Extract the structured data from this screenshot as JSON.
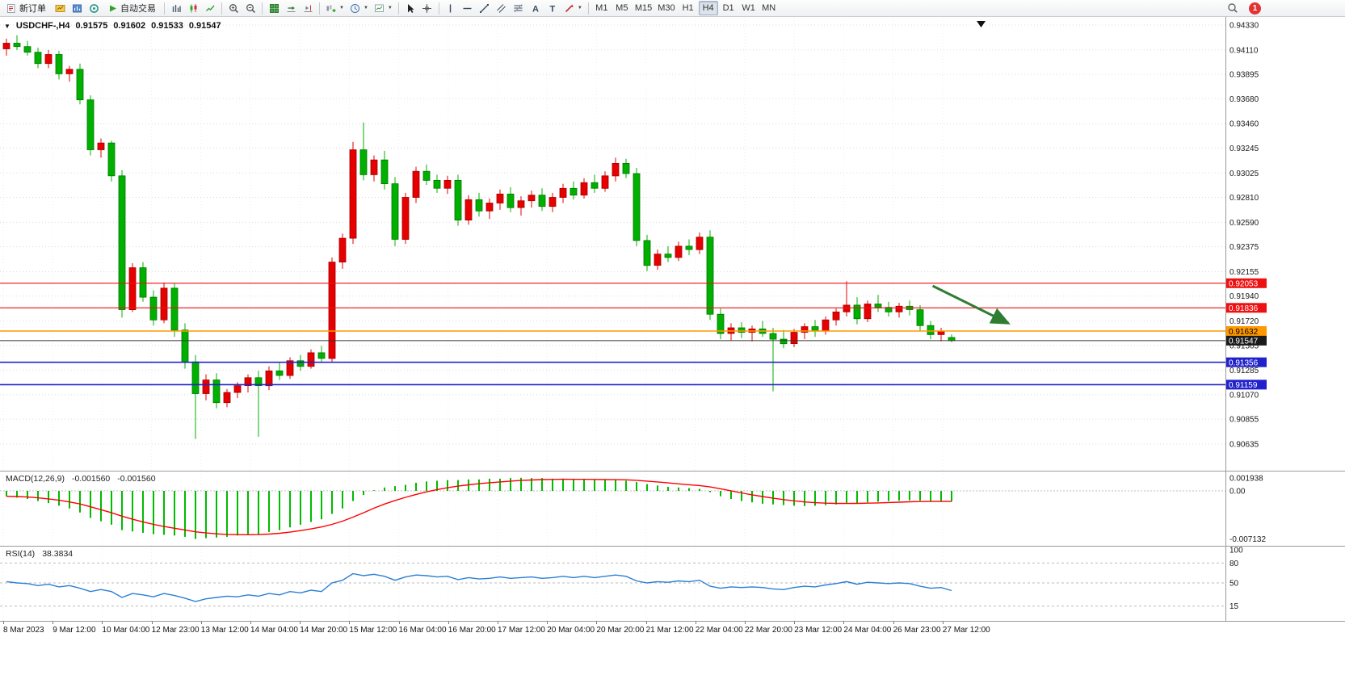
{
  "toolbar": {
    "new_order_label": "新订单",
    "autotrading_label": "自动交易",
    "timeframes": [
      "M1",
      "M5",
      "M15",
      "M30",
      "H1",
      "H4",
      "D1",
      "W1",
      "MN"
    ],
    "active_timeframe": "H4",
    "notification_badge": "1"
  },
  "chart": {
    "symbol_period": "USDCHF-,H4",
    "open": "0.91575",
    "high": "0.91602",
    "low": "0.91533",
    "close": "0.91547"
  },
  "icons": {
    "new_order": "document-sheet",
    "autotrading": "green-play-triangle",
    "zoom_in": "magnifier-plus",
    "zoom_out": "magnifier-minus",
    "tile_windows": "green-grid",
    "periods": "clock",
    "cursor": "pointer-arrow",
    "crosshair": "cross",
    "search": "magnifier",
    "notification": "red-circle-badge",
    "chart_menu": "black-down-triangle",
    "symbol_collapse": "black-down-triangle"
  },
  "chart_data": {
    "type": "candlestick",
    "symbol": "USDCHF-",
    "period": "H4",
    "up_color": "#e60000",
    "down_color": "#00b000",
    "price_axis": {
      "max": 0.9433,
      "min": 0.90635,
      "ticks": [
        "0.94330",
        "0.94110",
        "0.93895",
        "0.93680",
        "0.93460",
        "0.93245",
        "0.93025",
        "0.92810",
        "0.92590",
        "0.92375",
        "0.92155",
        "0.91940",
        "0.91720",
        "0.91505",
        "0.91285",
        "0.91070",
        "0.90855",
        "0.90635"
      ]
    },
    "time_axis": [
      "8 Mar 2023",
      "9 Mar 12:00",
      "10 Mar 04:00",
      "12 Mar 23:00",
      "13 Mar 12:00",
      "14 Mar 04:00",
      "14 Mar 20:00",
      "15 Mar 12:00",
      "16 Mar 04:00",
      "16 Mar 20:00",
      "17 Mar 12:00",
      "20 Mar 04:00",
      "20 Mar 20:00",
      "21 Mar 12:00",
      "22 Mar 04:00",
      "22 Mar 20:00",
      "23 Mar 12:00",
      "24 Mar 04:00",
      "26 Mar 23:00",
      "27 Mar 12:00"
    ],
    "candles": [
      [
        0.9412,
        0.9421,
        0.9406,
        0.9417
      ],
      [
        0.9417,
        0.9424,
        0.9411,
        0.9414
      ],
      [
        0.9414,
        0.9419,
        0.9406,
        0.9409
      ],
      [
        0.9409,
        0.9413,
        0.9395,
        0.9399
      ],
      [
        0.9399,
        0.9411,
        0.9395,
        0.9407
      ],
      [
        0.9407,
        0.941,
        0.9385,
        0.939
      ],
      [
        0.939,
        0.9397,
        0.9383,
        0.9394
      ],
      [
        0.9394,
        0.9399,
        0.9363,
        0.9367
      ],
      [
        0.9367,
        0.9371,
        0.9318,
        0.9323
      ],
      [
        0.9323,
        0.9333,
        0.9316,
        0.9329
      ],
      [
        0.9329,
        0.9331,
        0.9295,
        0.93
      ],
      [
        0.93,
        0.9305,
        0.9175,
        0.9182
      ],
      [
        0.9182,
        0.9223,
        0.918,
        0.9219
      ],
      [
        0.9219,
        0.9224,
        0.9189,
        0.9193
      ],
      [
        0.9193,
        0.9199,
        0.9168,
        0.9173
      ],
      [
        0.9173,
        0.9206,
        0.917,
        0.9201
      ],
      [
        0.9201,
        0.9205,
        0.9158,
        0.9164
      ],
      [
        0.9164,
        0.917,
        0.913,
        0.9136
      ],
      [
        0.9136,
        0.9142,
        0.9068,
        0.9108
      ],
      [
        0.9108,
        0.9125,
        0.9102,
        0.912
      ],
      [
        0.912,
        0.9126,
        0.9095,
        0.91
      ],
      [
        0.91,
        0.9112,
        0.9096,
        0.9109
      ],
      [
        0.9109,
        0.9118,
        0.9104,
        0.9115
      ],
      [
        0.9115,
        0.9125,
        0.9109,
        0.9122
      ],
      [
        0.9122,
        0.9128,
        0.907,
        0.9115
      ],
      [
        0.9115,
        0.9132,
        0.9111,
        0.9128
      ],
      [
        0.9128,
        0.9135,
        0.912,
        0.9124
      ],
      [
        0.9124,
        0.914,
        0.9121,
        0.9137
      ],
      [
        0.9137,
        0.9142,
        0.9128,
        0.9132
      ],
      [
        0.9132,
        0.9147,
        0.913,
        0.9144
      ],
      [
        0.9144,
        0.915,
        0.9135,
        0.9139
      ],
      [
        0.9139,
        0.9228,
        0.9136,
        0.9224
      ],
      [
        0.9224,
        0.9249,
        0.9218,
        0.9245
      ],
      [
        0.9245,
        0.933,
        0.924,
        0.9323
      ],
      [
        0.9323,
        0.9347,
        0.9296,
        0.9301
      ],
      [
        0.9301,
        0.9318,
        0.9295,
        0.9314
      ],
      [
        0.9314,
        0.9322,
        0.9288,
        0.9293
      ],
      [
        0.9293,
        0.9299,
        0.9238,
        0.9244
      ],
      [
        0.9244,
        0.9285,
        0.924,
        0.9281
      ],
      [
        0.9281,
        0.9308,
        0.9276,
        0.9304
      ],
      [
        0.9304,
        0.931,
        0.9292,
        0.9296
      ],
      [
        0.9296,
        0.9301,
        0.9285,
        0.9289
      ],
      [
        0.9289,
        0.93,
        0.9284,
        0.9296
      ],
      [
        0.9296,
        0.9301,
        0.9256,
        0.9261
      ],
      [
        0.9261,
        0.9283,
        0.9257,
        0.9279
      ],
      [
        0.9279,
        0.9285,
        0.9264,
        0.9269
      ],
      [
        0.9269,
        0.928,
        0.9262,
        0.9276
      ],
      [
        0.9276,
        0.9288,
        0.927,
        0.9284
      ],
      [
        0.9284,
        0.929,
        0.9268,
        0.9272
      ],
      [
        0.9272,
        0.9282,
        0.9265,
        0.9278
      ],
      [
        0.9278,
        0.9287,
        0.9272,
        0.9283
      ],
      [
        0.9283,
        0.9289,
        0.9269,
        0.9273
      ],
      [
        0.9273,
        0.9285,
        0.9268,
        0.9281
      ],
      [
        0.9281,
        0.9293,
        0.9276,
        0.9289
      ],
      [
        0.9289,
        0.9295,
        0.9279,
        0.9283
      ],
      [
        0.9283,
        0.9298,
        0.928,
        0.9294
      ],
      [
        0.9294,
        0.9301,
        0.9285,
        0.9289
      ],
      [
        0.9289,
        0.9304,
        0.9286,
        0.93
      ],
      [
        0.93,
        0.9316,
        0.9295,
        0.9311
      ],
      [
        0.9311,
        0.9315,
        0.9298,
        0.9302
      ],
      [
        0.9302,
        0.9307,
        0.9238,
        0.9243
      ],
      [
        0.9243,
        0.9248,
        0.9216,
        0.9221
      ],
      [
        0.9221,
        0.9235,
        0.9217,
        0.9231
      ],
      [
        0.9231,
        0.9238,
        0.9224,
        0.9228
      ],
      [
        0.9228,
        0.9242,
        0.9225,
        0.9238
      ],
      [
        0.9238,
        0.9244,
        0.923,
        0.9235
      ],
      [
        0.9235,
        0.925,
        0.9231,
        0.9246
      ],
      [
        0.9246,
        0.9252,
        0.9173,
        0.9178
      ],
      [
        0.9178,
        0.9183,
        0.9156,
        0.9161
      ],
      [
        0.9161,
        0.917,
        0.9155,
        0.9166
      ],
      [
        0.9166,
        0.9171,
        0.9157,
        0.9162
      ],
      [
        0.9162,
        0.9168,
        0.9154,
        0.9165
      ],
      [
        0.9165,
        0.9172,
        0.9158,
        0.9161
      ],
      [
        0.9161,
        0.9166,
        0.911,
        0.9156
      ],
      [
        0.9156,
        0.9164,
        0.9148,
        0.9152
      ],
      [
        0.9152,
        0.9165,
        0.9149,
        0.9162
      ],
      [
        0.9162,
        0.917,
        0.9156,
        0.9167
      ],
      [
        0.9167,
        0.9173,
        0.9158,
        0.9163
      ],
      [
        0.9163,
        0.9176,
        0.916,
        0.9173
      ],
      [
        0.9173,
        0.9183,
        0.9168,
        0.918
      ],
      [
        0.918,
        0.9207,
        0.9176,
        0.9186
      ],
      [
        0.9186,
        0.9193,
        0.9169,
        0.9174
      ],
      [
        0.9174,
        0.919,
        0.9171,
        0.9187
      ],
      [
        0.9187,
        0.9195,
        0.918,
        0.9184
      ],
      [
        0.9184,
        0.9189,
        0.9176,
        0.918
      ],
      [
        0.918,
        0.9188,
        0.9175,
        0.9185
      ],
      [
        0.9185,
        0.919,
        0.9177,
        0.9182
      ],
      [
        0.9182,
        0.9186,
        0.9163,
        0.9168
      ],
      [
        0.9168,
        0.9172,
        0.9156,
        0.916
      ],
      [
        0.916,
        0.9166,
        0.9154,
        0.9163
      ],
      [
        0.91575,
        0.91602,
        0.91533,
        0.91547
      ]
    ],
    "levels": [
      {
        "price": 0.92053,
        "label": "0.92053",
        "color": "#ee1111",
        "text_color": "#ffffff",
        "width": 1.2
      },
      {
        "price": 0.91836,
        "label": "0.91836",
        "color": "#ee1111",
        "text_color": "#ffffff",
        "width": 1.2
      },
      {
        "price": 0.91632,
        "label": "0.91632",
        "color": "#ff9900",
        "text_color": "#000000",
        "width": 1.6
      },
      {
        "price": 0.91356,
        "label": "0.91356",
        "color": "#2222cc",
        "text_color": "#ffffff",
        "width": 1.6
      },
      {
        "price": 0.91159,
        "label": "0.91159",
        "color": "#2222cc",
        "text_color": "#ffffff",
        "width": 1.6
      }
    ],
    "current_price": {
      "value": 0.91547,
      "label": "0.91547",
      "bg": "#1a1a1a",
      "text_color": "#ffffff",
      "line_color": "#333333"
    },
    "annotations": [
      {
        "type": "arrow",
        "from_bar": 88.2,
        "from_price": 0.9203,
        "to_bar": 95.4,
        "to_price": 0.917,
        "color": "#2e7d32",
        "width": 3
      }
    ],
    "macd": {
      "name": "MACD(12,26,9)",
      "value1": "-0.001560",
      "value2": "-0.001560",
      "histogram_color": "#00bb00",
      "signal_color": "#ff0000",
      "axis_ticks": [
        "0.001938",
        "0.00",
        "-0.007132"
      ],
      "histogram": [
        -0.0008,
        -0.001,
        -0.0012,
        -0.0015,
        -0.0018,
        -0.0022,
        -0.0026,
        -0.0032,
        -0.004,
        -0.0045,
        -0.005,
        -0.0058,
        -0.006,
        -0.0062,
        -0.0064,
        -0.0065,
        -0.0066,
        -0.0068,
        -0.0071,
        -0.007,
        -0.0069,
        -0.0068,
        -0.0066,
        -0.0065,
        -0.0064,
        -0.0061,
        -0.0058,
        -0.0054,
        -0.005,
        -0.0046,
        -0.0042,
        -0.0034,
        -0.0026,
        -0.0015,
        -0.0006,
        0.0001,
        0.0005,
        0.0007,
        0.0009,
        0.0012,
        0.0014,
        0.0015,
        0.0016,
        0.0016,
        0.0017,
        0.0017,
        0.0018,
        0.0018,
        0.0019,
        0.00194,
        0.0019,
        0.0019,
        0.0018,
        0.0018,
        0.0017,
        0.0017,
        0.0016,
        0.0016,
        0.0016,
        0.0015,
        0.0013,
        0.001,
        0.0008,
        0.0006,
        0.0005,
        0.0004,
        0.0003,
        -0.0002,
        -0.0008,
        -0.0012,
        -0.0015,
        -0.0017,
        -0.0019,
        -0.002,
        -0.0021,
        -0.0022,
        -0.00225,
        -0.0022,
        -0.0021,
        -0.002,
        -0.0019,
        -0.0018,
        -0.0017,
        -0.0016,
        -0.0015,
        -0.00145,
        -0.0014,
        -0.00145,
        -0.0015,
        -0.00155,
        -0.00156
      ],
      "signal": [
        -0.0008,
        -0.00084,
        -0.00091,
        -0.00103,
        -0.00118,
        -0.00139,
        -0.00163,
        -0.00194,
        -0.00235,
        -0.00278,
        -0.00323,
        -0.00374,
        -0.00419,
        -0.00459,
        -0.00496,
        -0.00526,
        -0.00553,
        -0.00578,
        -0.00605,
        -0.00622,
        -0.00635,
        -0.00644,
        -0.00647,
        -0.00648,
        -0.00646,
        -0.00639,
        -0.00627,
        -0.0061,
        -0.00588,
        -0.00562,
        -0.00534,
        -0.00495,
        -0.00448,
        -0.00388,
        -0.00323,
        -0.00256,
        -0.00195,
        -0.00142,
        -0.00095,
        -0.00052,
        -0.00014,
        0.00019,
        0.00047,
        0.0007,
        0.0009,
        0.00106,
        0.00121,
        0.00133,
        0.00144,
        0.00154,
        0.00161,
        0.00167,
        0.0017,
        0.00172,
        0.00171,
        0.00171,
        0.00169,
        0.00167,
        0.00166,
        0.00163,
        0.00156,
        0.00145,
        0.00132,
        0.00118,
        0.00104,
        0.00091,
        0.00079,
        0.00059,
        0.00031,
        1e-05,
        -0.0003,
        -0.00058,
        -0.00084,
        -0.00109,
        -0.00129,
        -0.00147,
        -0.00163,
        -0.00174,
        -0.00181,
        -0.00185,
        -0.00186,
        -0.00185,
        -0.00182,
        -0.00178,
        -0.00172,
        -0.00167,
        -0.00161,
        -0.00158,
        -0.00156,
        -0.00156,
        -0.00156
      ]
    },
    "rsi": {
      "name": "RSI(14)",
      "value_label": "38.3834",
      "line_color": "#2a7fd4",
      "levels": [
        80,
        50,
        15
      ],
      "axis_ticks": [
        "100",
        "80",
        "50",
        "15"
      ],
      "values": [
        52,
        50,
        49,
        46,
        48,
        44,
        46,
        42,
        37,
        40,
        37,
        28,
        34,
        32,
        29,
        34,
        31,
        27,
        22,
        26,
        28,
        30,
        29,
        32,
        30,
        34,
        32,
        37,
        35,
        39,
        37,
        50,
        54,
        64,
        61,
        63,
        60,
        54,
        59,
        62,
        61,
        59,
        60,
        55,
        58,
        56,
        57,
        59,
        57,
        58,
        59,
        57,
        58,
        60,
        58,
        60,
        58,
        60,
        62,
        60,
        53,
        50,
        52,
        51,
        53,
        52,
        54,
        45,
        42,
        44,
        43,
        44,
        43,
        41,
        40,
        43,
        45,
        44,
        47,
        49,
        52,
        48,
        51,
        50,
        49,
        50,
        49,
        45,
        42,
        43,
        38.38
      ]
    }
  }
}
